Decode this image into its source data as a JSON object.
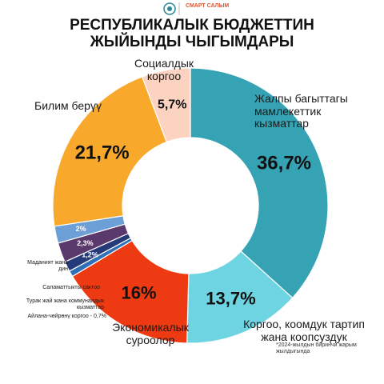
{
  "brand": "СМАРТ САЛЫМ",
  "chart_data": {
    "type": "pie",
    "title": "РЕСПУБЛИКАЛЫК БЮДЖЕТТИН ЖЫЙЫНДЫ ЧЫГЫМДАРЫ",
    "footnote": "*2024-жылдын биринчи жарым жылдыгында",
    "categories": [
      "Жалпы багыттагы мамлекеттик кызматтар",
      "Коргоо, коомдук тартип жана коопсуздук",
      "Экономикалык суроолор",
      "Айлана-чөйрөнү коргоо - 0,7%",
      "Турак жай жана коммуналдык кызматтар",
      "Саламаттыкты сактоо",
      "Маданият жана дин",
      "Билим берүү",
      "Социалдык коргоо"
    ],
    "values": [
      36.7,
      13.7,
      16,
      0.7,
      1.2,
      2.3,
      2,
      21.7,
      5.7
    ],
    "value_labels": [
      "36,7%",
      "13,7%",
      "16%",
      null,
      "1,2%",
      "2,3%",
      "2%",
      "21,7%",
      "5,7%"
    ],
    "colors": [
      "#35a3b4",
      "#6fd4e2",
      "#ee3a12",
      "#2f6fb5",
      "#263a7a",
      "#5a3a6c",
      "#6c9fd6",
      "#f8a82a",
      "#fbd3c0"
    ]
  }
}
